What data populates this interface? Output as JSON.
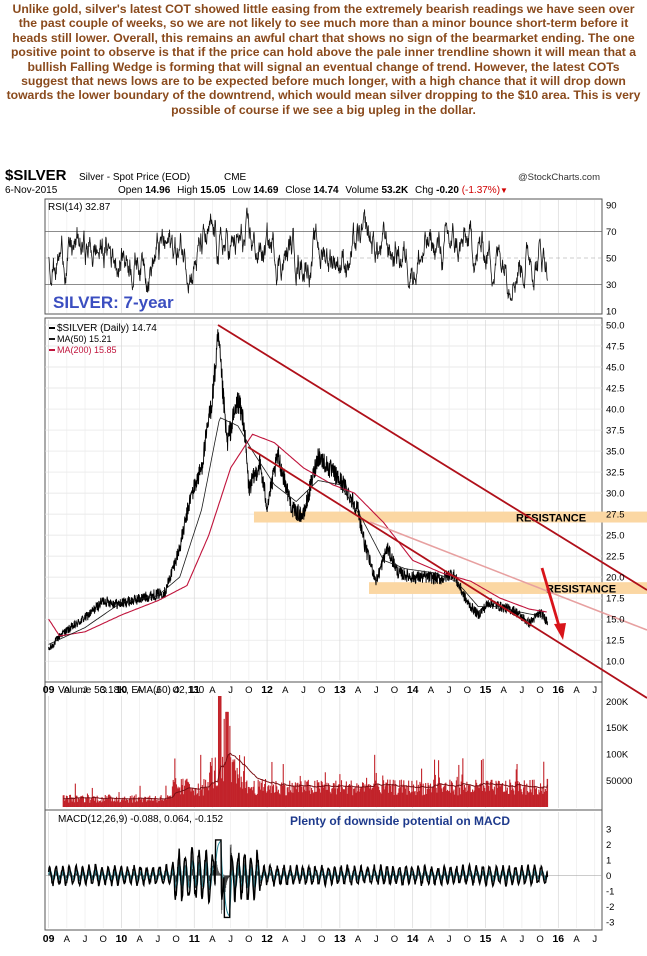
{
  "commentary": "Unlike gold, silver's latest COT showed little easing from the extremely bearish readings we have seen over the past couple of weeks, so we are not likely to see much more than a minor bounce short-term before it heads still lower. Overall, this remains an awful chart that shows no sign of the bearmarket ending. The one positive point to observe is that if the price can hold above the pale inner trendline shown it will mean that a bullish Falling Wedge is forming that will signal an eventual change of trend. However, the latest COTs suggest that news lows are to be expected before much longer, with a high chance that it will drop down towards the lower boundary of the downtrend, which would mean silver dropping to the $10 area. This is very possible of course if we see a big upleg in the dollar.",
  "header": {
    "symbol": "$SILVER",
    "name": "Silver - Spot Price (EOD)",
    "exchange": "CME",
    "copyright": "@StockCharts.com",
    "date": "6-Nov-2015",
    "open_label": "Open",
    "open": "14.96",
    "high_label": "High",
    "high": "15.05",
    "low_label": "Low",
    "low": "14.69",
    "close_label": "Close",
    "close": "14.74",
    "volume_label": "Volume",
    "volume": "53.2K",
    "chg_label": "Chg",
    "chg": "-0.20",
    "chg_pct": "(-1.37%)",
    "chg_arrow": "▼"
  },
  "colors": {
    "price": "#000000",
    "ma50": "#1a1a1a",
    "ma200": "#c0143c",
    "channel": "#b0101a",
    "inner_trendline": "#e7a0a0",
    "resistance_band": "#fbd7a3",
    "volume": "#c2232a",
    "macd_signal": "#2a8a9a",
    "commentary": "#8a4a1c",
    "macd_note": "#1e3a8c",
    "annotation": "#3b4ec0"
  },
  "chart_data": [
    {
      "panel": "rsi",
      "type": "line",
      "legend": "RSI(14) 32.87",
      "ticks": [
        "90",
        "70",
        "50",
        "30",
        "10"
      ],
      "ylim": [
        10,
        90
      ],
      "levels": [
        70,
        30
      ],
      "last": 32.87
    },
    {
      "panel": "price",
      "type": "line",
      "annotation": "SILVER: 7-year",
      "legend": [
        "$SILVER (Daily) 14.74",
        "MA(50) 15.21",
        "MA(200) 15.85"
      ],
      "y_ticks": [
        "50.0",
        "47.5",
        "45.0",
        "42.5",
        "40.0",
        "37.5",
        "35.0",
        "32.5",
        "30.0",
        "27.5",
        "25.0",
        "22.5",
        "20.0",
        "17.5",
        "15.0",
        "12.5",
        "10.0"
      ],
      "ylim": [
        8,
        50
      ],
      "x_ticks": [
        "09",
        "A",
        "J",
        "O",
        "10",
        "A",
        "J",
        "O",
        "11",
        "A",
        "J",
        "O",
        "12",
        "A",
        "J",
        "O",
        "13",
        "A",
        "J",
        "O",
        "14",
        "A",
        "J",
        "O",
        "15",
        "A",
        "J",
        "O",
        "16",
        "A",
        "J"
      ],
      "series": [
        {
          "name": "$SILVER (Daily)",
          "last": 14.74,
          "x": [
            2009.0,
            2009.17,
            2009.35,
            2009.55,
            2009.75,
            2009.95,
            2010.15,
            2010.4,
            2010.6,
            2010.8,
            2010.95,
            2011.1,
            2011.25,
            2011.33,
            2011.45,
            2011.6,
            2011.68,
            2011.75,
            2011.9,
            2012.0,
            2012.15,
            2012.35,
            2012.5,
            2012.7,
            2012.9,
            2013.05,
            2013.25,
            2013.35,
            2013.5,
            2013.65,
            2013.8,
            2014.0,
            2014.2,
            2014.4,
            2014.55,
            2014.75,
            2014.9,
            2015.05,
            2015.2,
            2015.4,
            2015.6,
            2015.75,
            2015.85
          ],
          "y": [
            11.3,
            13.2,
            14.2,
            15.5,
            17.2,
            16.8,
            17.2,
            17.8,
            18.2,
            23.5,
            29.5,
            33.0,
            41.5,
            48.5,
            36.0,
            41.0,
            38.5,
            30.5,
            33.5,
            28.5,
            34.5,
            28.0,
            27.3,
            34.5,
            32.5,
            31.0,
            28.0,
            23.5,
            19.5,
            23.5,
            20.5,
            20.0,
            20.0,
            19.8,
            20.5,
            17.0,
            15.5,
            17.0,
            16.5,
            16.0,
            14.5,
            15.8,
            14.74
          ]
        },
        {
          "name": "MA(50)",
          "last": 15.21,
          "x": [
            2009.0,
            2009.5,
            2010.0,
            2010.5,
            2010.8,
            2011.1,
            2011.35,
            2011.6,
            2011.8,
            2012.1,
            2012.4,
            2012.7,
            2013.0,
            2013.3,
            2013.6,
            2013.9,
            2014.3,
            2014.6,
            2014.9,
            2015.2,
            2015.5,
            2015.85
          ],
          "y": [
            12.0,
            14.0,
            17.0,
            17.8,
            20.0,
            28.0,
            39.0,
            38.0,
            35.0,
            31.0,
            29.0,
            31.5,
            31.0,
            27.0,
            22.0,
            21.0,
            20.5,
            19.5,
            16.5,
            16.5,
            15.8,
            15.21
          ]
        },
        {
          "name": "MA(200)",
          "last": 15.85,
          "x": [
            2009.0,
            2009.15,
            2009.5,
            2010.0,
            2010.5,
            2010.9,
            2011.2,
            2011.5,
            2011.8,
            2012.1,
            2012.5,
            2012.9,
            2013.2,
            2013.6,
            2014.0,
            2014.4,
            2014.8,
            2015.2,
            2015.6,
            2015.85
          ],
          "y": [
            15.0,
            13.0,
            13.5,
            15.5,
            17.2,
            19.0,
            25.0,
            33.0,
            37.0,
            36.0,
            33.0,
            31.0,
            30.0,
            26.5,
            22.0,
            20.5,
            19.5,
            17.5,
            16.2,
            15.85
          ]
        }
      ],
      "annotations": [
        "RESISTANCE",
        "RESISTANCE"
      ]
    },
    {
      "panel": "volume",
      "type": "bar",
      "legend": "Volume 53.18K, EMA(60) 42,130",
      "ticks": [
        "200K",
        "150K",
        "100K",
        "50000"
      ],
      "ylim": [
        0,
        210000
      ],
      "last": 53180,
      "ema": 42130
    },
    {
      "panel": "macd",
      "type": "line",
      "legend": "MACD(12,26,9) -0.088, 0.064, -0.152",
      "note": "Plenty of downside potential on MACD",
      "ticks": [
        "3",
        "2",
        "1",
        "0",
        "-1",
        "-2",
        "-3"
      ],
      "ylim": [
        -3,
        3
      ],
      "macd": -0.088,
      "signal": 0.064,
      "histogram": -0.152
    }
  ]
}
